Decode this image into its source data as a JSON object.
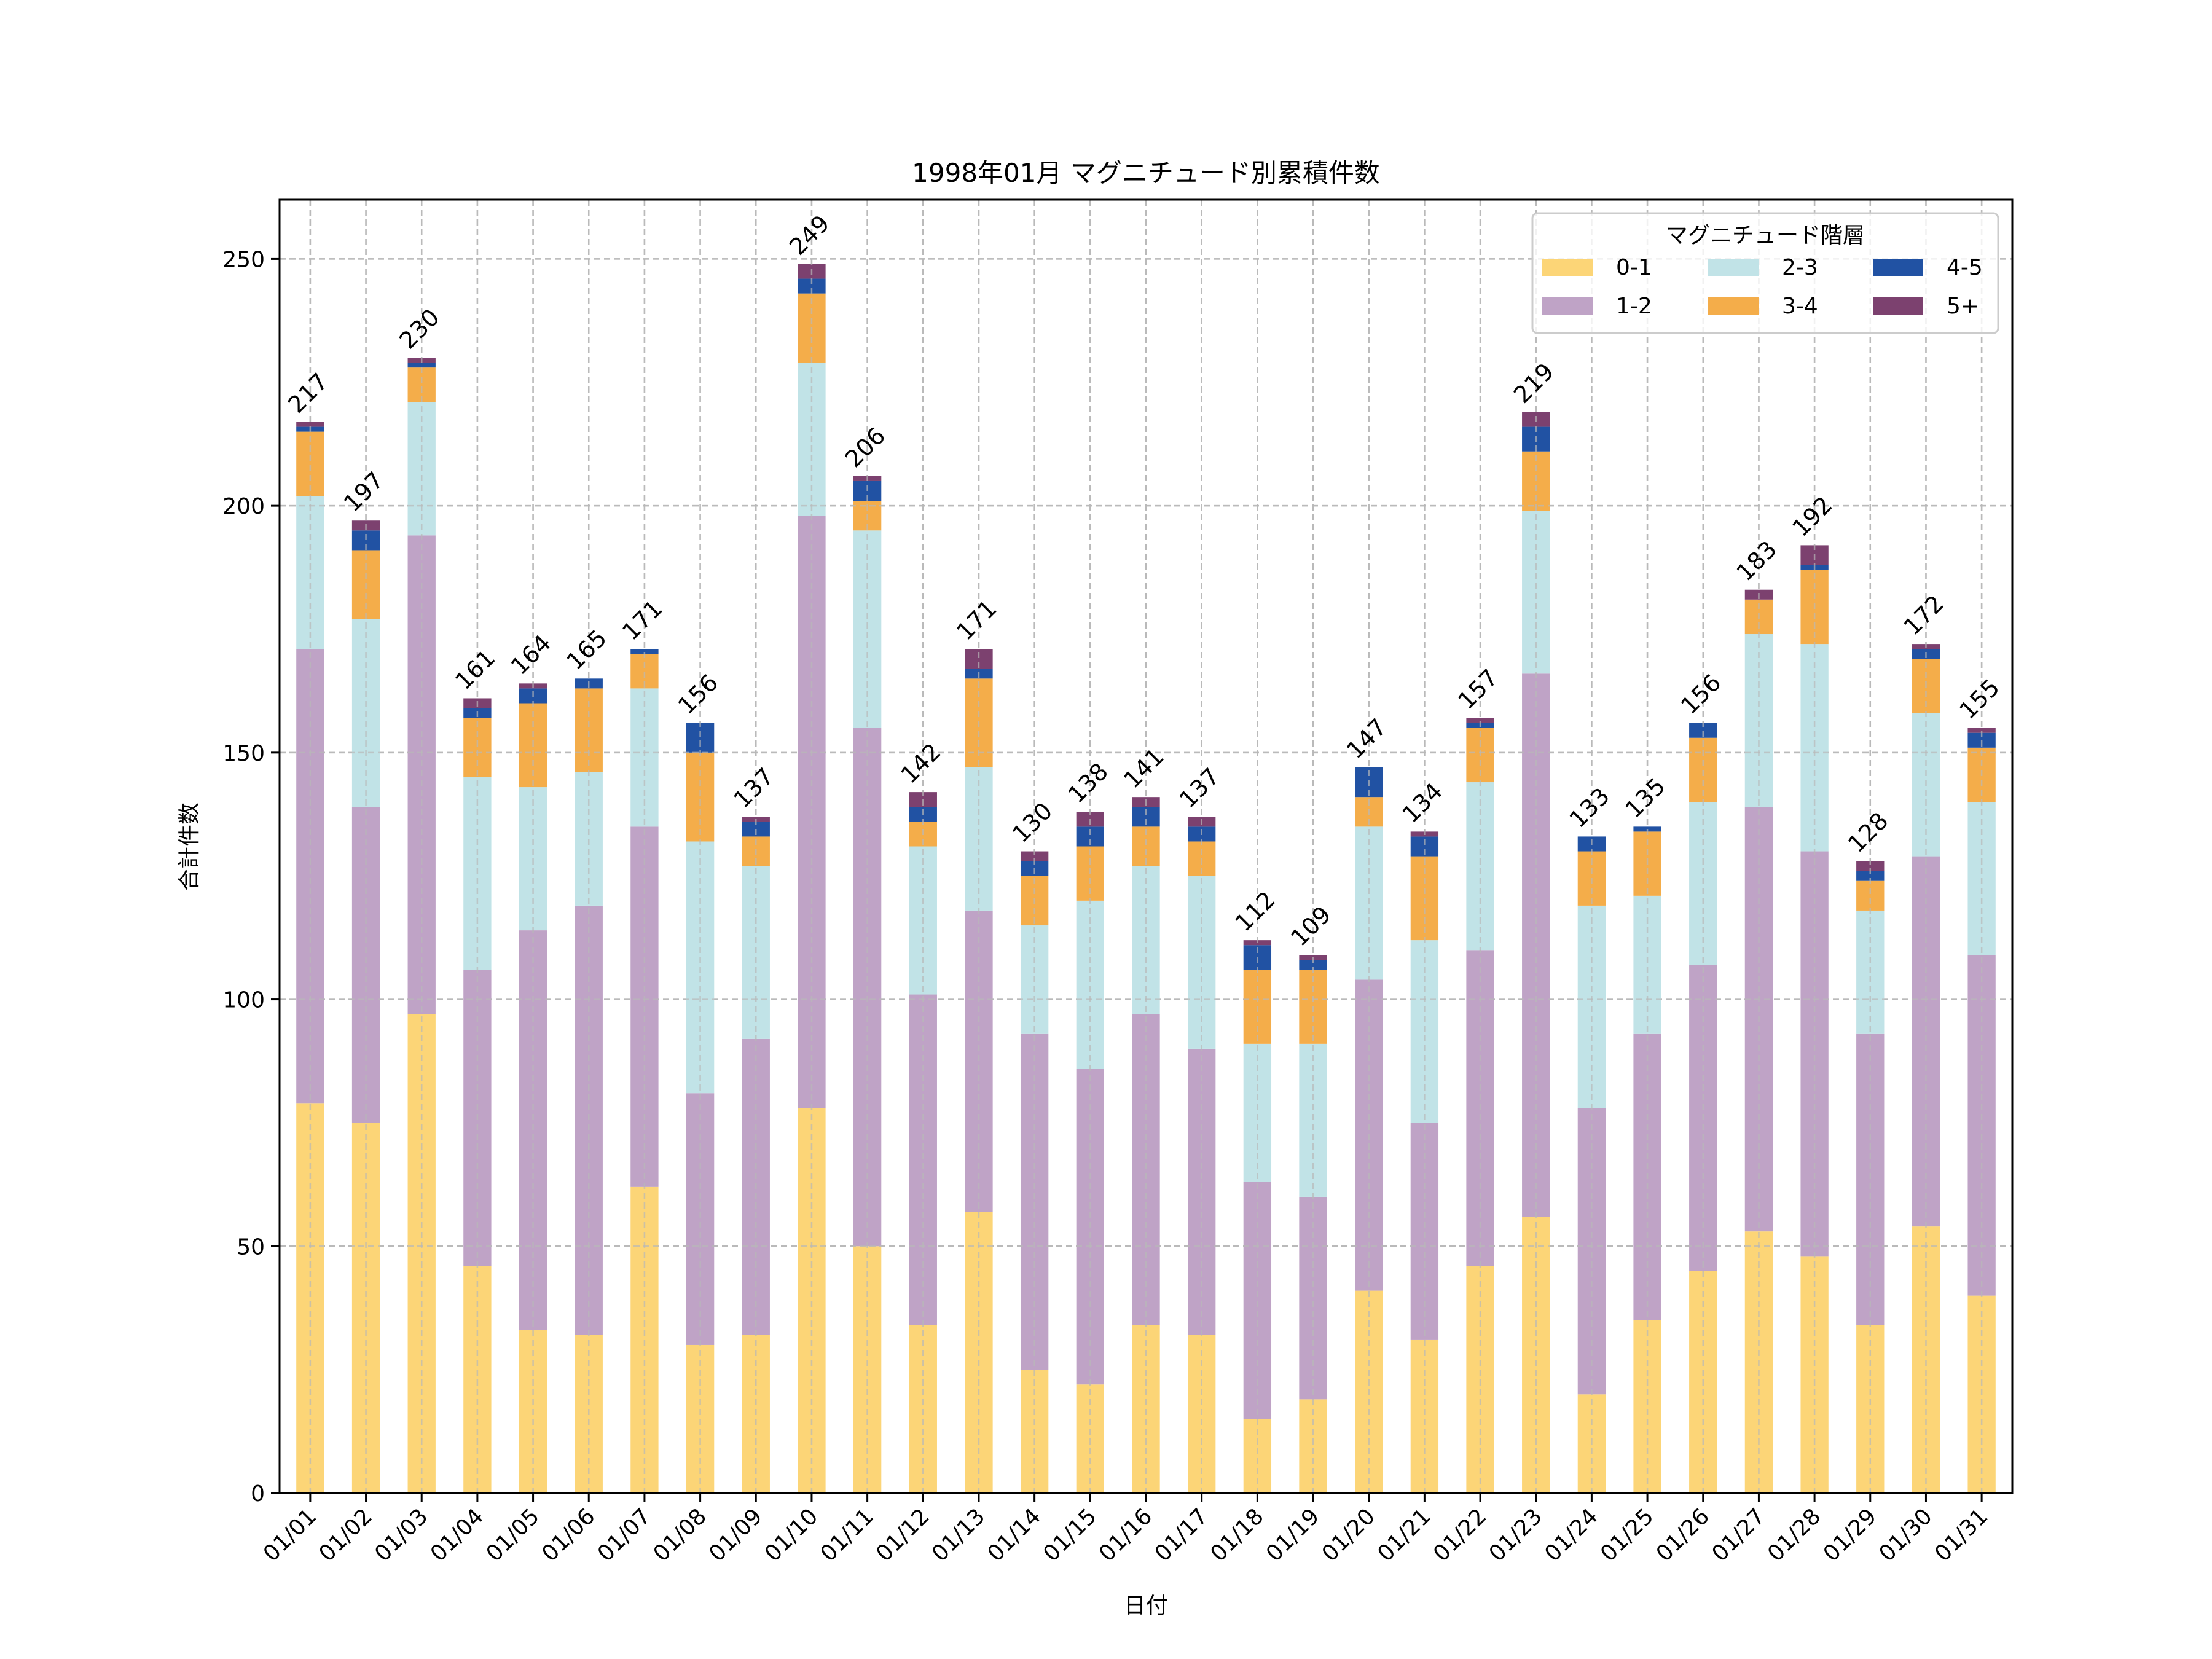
{
  "chart_data": {
    "type": "bar",
    "stacked": true,
    "title": "1998年01月 マグニチュード別累積件数",
    "xlabel": "日付",
    "ylabel": "合計件数",
    "ylim": [
      0,
      262
    ],
    "yticks": [
      0,
      50,
      100,
      150,
      200,
      250
    ],
    "grid": true,
    "legend": {
      "title": "マグニチュード階層",
      "placement": "top-right",
      "columns": 3
    },
    "categories": [
      "01/01",
      "01/02",
      "01/03",
      "01/04",
      "01/05",
      "01/06",
      "01/07",
      "01/08",
      "01/09",
      "01/10",
      "01/11",
      "01/12",
      "01/13",
      "01/14",
      "01/15",
      "01/16",
      "01/17",
      "01/18",
      "01/19",
      "01/20",
      "01/21",
      "01/22",
      "01/23",
      "01/24",
      "01/25",
      "01/26",
      "01/27",
      "01/28",
      "01/29",
      "01/30",
      "01/31"
    ],
    "series": [
      {
        "name": "0-1",
        "color": "#fcd577",
        "values": [
          79,
          75,
          97,
          46,
          33,
          32,
          62,
          30,
          32,
          78,
          50,
          34,
          57,
          25,
          22,
          34,
          32,
          15,
          19,
          41,
          31,
          46,
          56,
          20,
          35,
          45,
          53,
          48,
          34,
          54,
          40
        ]
      },
      {
        "name": "1-2",
        "color": "#bfa3c6",
        "values": [
          92,
          64,
          97,
          60,
          81,
          87,
          73,
          51,
          60,
          120,
          105,
          67,
          61,
          68,
          64,
          63,
          58,
          48,
          41,
          63,
          44,
          64,
          110,
          58,
          58,
          62,
          86,
          82,
          59,
          75,
          69
        ]
      },
      {
        "name": "2-3",
        "color": "#c1e3e7",
        "values": [
          31,
          38,
          27,
          39,
          29,
          27,
          28,
          51,
          35,
          31,
          40,
          30,
          29,
          22,
          34,
          30,
          35,
          28,
          31,
          31,
          37,
          34,
          33,
          41,
          28,
          33,
          35,
          42,
          25,
          29,
          31
        ]
      },
      {
        "name": "3-4",
        "color": "#f4ad4a",
        "values": [
          13,
          14,
          7,
          12,
          17,
          17,
          7,
          18,
          6,
          14,
          6,
          5,
          18,
          10,
          11,
          8,
          7,
          15,
          15,
          6,
          17,
          11,
          12,
          11,
          13,
          13,
          7,
          15,
          6,
          11,
          11
        ]
      },
      {
        "name": "4-5",
        "color": "#2152a3",
        "values": [
          1,
          4,
          1,
          2,
          3,
          2,
          1,
          6,
          3,
          3,
          4,
          3,
          2,
          3,
          4,
          4,
          3,
          5,
          2,
          6,
          4,
          1,
          5,
          3,
          1,
          3,
          0,
          1,
          2,
          2,
          3
        ]
      },
      {
        "name": "5+",
        "color": "#7c416f",
        "values": [
          1,
          2,
          1,
          2,
          1,
          0,
          0,
          0,
          1,
          3,
          1,
          3,
          4,
          2,
          3,
          2,
          2,
          1,
          1,
          0,
          1,
          1,
          3,
          0,
          0,
          0,
          2,
          4,
          2,
          1,
          1
        ]
      }
    ],
    "totals": [
      217,
      197,
      230,
      161,
      164,
      165,
      171,
      156,
      137,
      249,
      206,
      142,
      171,
      130,
      138,
      141,
      137,
      112,
      109,
      147,
      134,
      157,
      219,
      133,
      135,
      156,
      183,
      192,
      128,
      172,
      155
    ]
  }
}
